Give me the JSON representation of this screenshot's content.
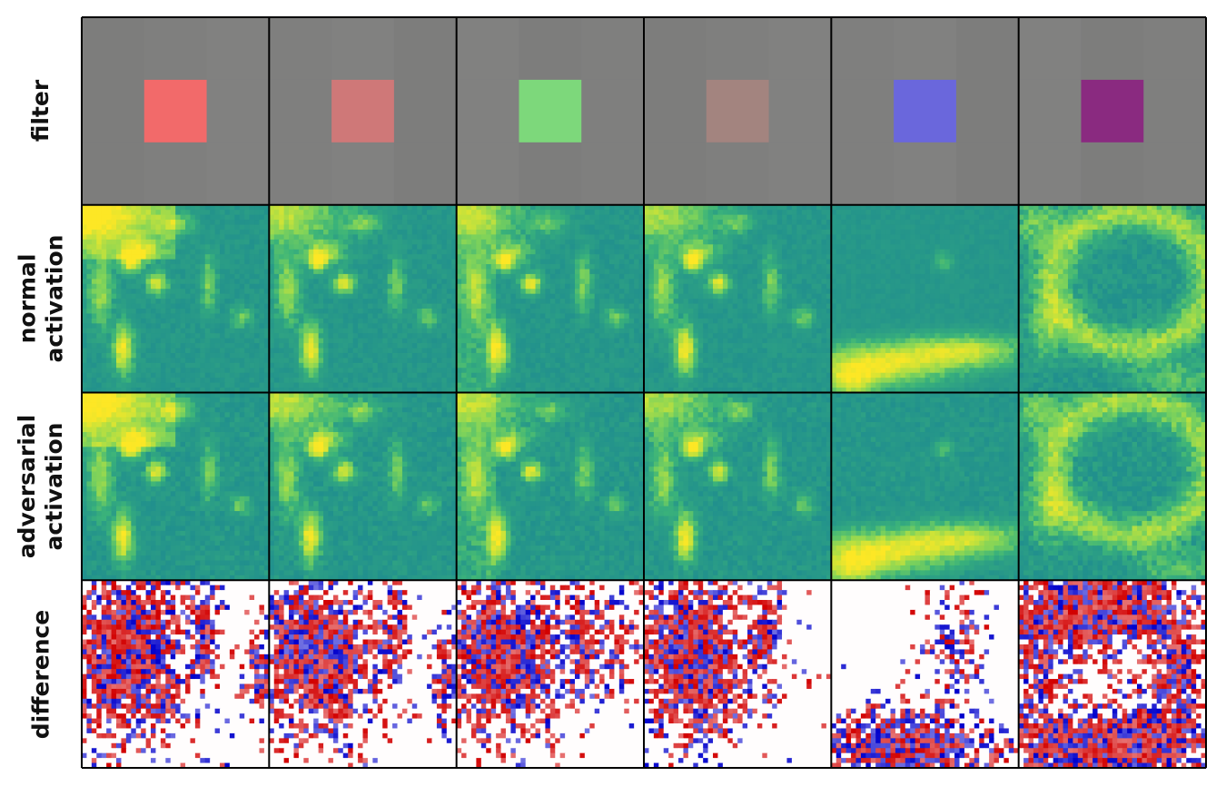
{
  "rows": [
    {
      "key": "filter",
      "label": "filter"
    },
    {
      "key": "normal",
      "label": "normal\nactivation"
    },
    {
      "key": "adversarial",
      "label": "adversarial\nactivation"
    },
    {
      "key": "difference",
      "label": "difference"
    }
  ],
  "columns": 6,
  "filter_background_color": "#7f7f7f",
  "filter_swatch_colors": [
    "#f26a6a",
    "#cf7878",
    "#7dd87b",
    "#a3847f",
    "#6a67dc",
    "#8a2a80"
  ],
  "activation_colormap": [
    "#21908d",
    "#3bb37a",
    "#7fd35a",
    "#c7e23a",
    "#fde725"
  ],
  "difference_colormap": {
    "negative": "#0000cc",
    "zero": "#fffdfd",
    "positive": "#d20000"
  },
  "grid_color": "#000000"
}
